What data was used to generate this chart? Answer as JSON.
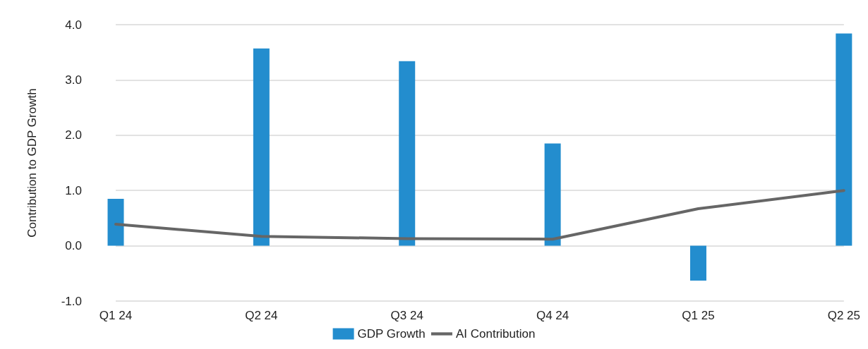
{
  "chart_data": {
    "type": "bar",
    "ylabel": "Contribution to GDP Growth",
    "categories": [
      "Q1 24",
      "Q2 24",
      "Q3 24",
      "Q4 24",
      "Q1 25",
      "Q2 25"
    ],
    "series": [
      {
        "name": "GDP Growth",
        "color": "#238dce",
        "values": [
          0.85,
          3.57,
          3.34,
          1.85,
          -0.63,
          3.84
        ]
      },
      {
        "name": "AI Contribution",
        "type": "line",
        "color": "#666666",
        "values": [
          0.39,
          0.17,
          0.13,
          0.12,
          0.67,
          1.0
        ]
      }
    ],
    "ylim": [
      -1,
      4
    ],
    "yticks": [
      {
        "value": -1,
        "label": "-1.0"
      },
      {
        "value": 0,
        "label": "0.0"
      },
      {
        "value": 1,
        "label": "1.0"
      },
      {
        "value": 2,
        "label": "2.0"
      },
      {
        "value": 3,
        "label": "3.0"
      },
      {
        "value": 4,
        "label": "4.0"
      }
    ],
    "grid": "y",
    "legend": "bottom",
    "marker": "none"
  }
}
